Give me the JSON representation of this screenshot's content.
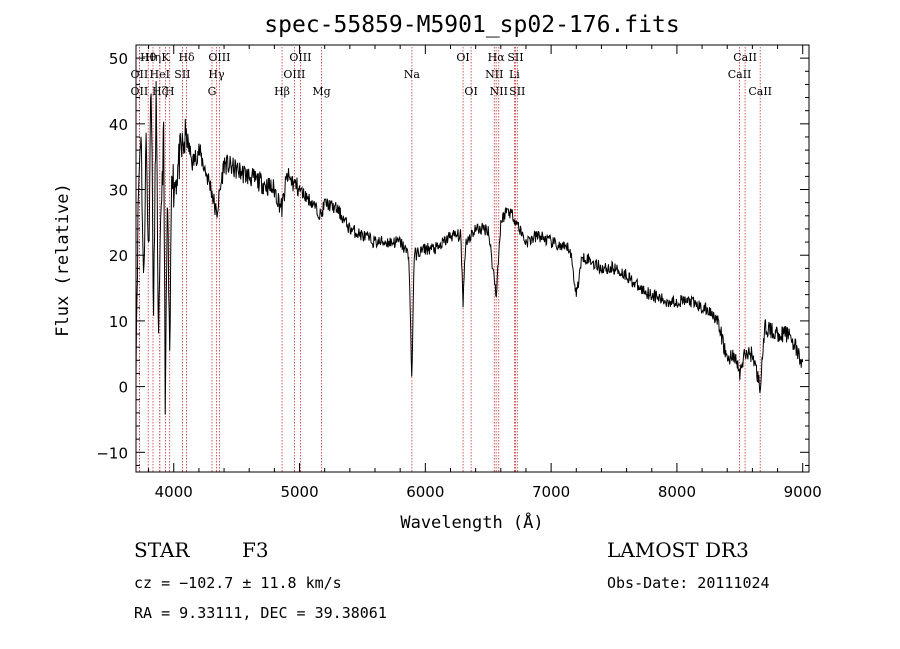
{
  "chart_data": {
    "type": "line",
    "title": "spec-55859-M5901_sp02-176.fits",
    "xlabel": "Wavelength (Å)",
    "ylabel": "Flux (relative)",
    "xlim": [
      3700,
      9050
    ],
    "ylim": [
      -13,
      52
    ],
    "xticks": [
      4000,
      5000,
      6000,
      7000,
      8000,
      9000
    ],
    "yticks": [
      -10,
      0,
      10,
      20,
      30,
      40,
      50
    ],
    "line_color": "#000000",
    "marker_color": "#cc3333",
    "spectrum_anchors": [
      [
        3700,
        5
      ],
      [
        3720,
        30
      ],
      [
        3740,
        40
      ],
      [
        3760,
        15
      ],
      [
        3780,
        38
      ],
      [
        3800,
        20
      ],
      [
        3820,
        48
      ],
      [
        3840,
        10
      ],
      [
        3860,
        45
      ],
      [
        3880,
        6
      ],
      [
        3900,
        28
      ],
      [
        3920,
        38
      ],
      [
        3933,
        -4
      ],
      [
        3950,
        30
      ],
      [
        3968,
        2
      ],
      [
        3985,
        36
      ],
      [
        4000,
        30
      ],
      [
        4050,
        35
      ],
      [
        4100,
        38
      ],
      [
        4150,
        34
      ],
      [
        4200,
        36
      ],
      [
        4250,
        33
      ],
      [
        4300,
        30
      ],
      [
        4340,
        26
      ],
      [
        4400,
        34
      ],
      [
        4500,
        33
      ],
      [
        4600,
        32
      ],
      [
        4700,
        31
      ],
      [
        4800,
        30
      ],
      [
        4861,
        27
      ],
      [
        4900,
        32
      ],
      [
        5000,
        30
      ],
      [
        5100,
        28
      ],
      [
        5172,
        26
      ],
      [
        5200,
        28
      ],
      [
        5300,
        27
      ],
      [
        5400,
        24
      ],
      [
        5500,
        23
      ],
      [
        5600,
        22
      ],
      [
        5700,
        22
      ],
      [
        5800,
        22
      ],
      [
        5870,
        20
      ],
      [
        5893,
        0.5
      ],
      [
        5910,
        20
      ],
      [
        6000,
        21
      ],
      [
        6100,
        21
      ],
      [
        6200,
        23
      ],
      [
        6280,
        23
      ],
      [
        6300,
        13
      ],
      [
        6320,
        22
      ],
      [
        6400,
        24
      ],
      [
        6500,
        24
      ],
      [
        6563,
        14
      ],
      [
        6600,
        25
      ],
      [
        6650,
        27
      ],
      [
        6700,
        26
      ],
      [
        6800,
        22
      ],
      [
        6900,
        23
      ],
      [
        7000,
        22
      ],
      [
        7100,
        21
      ],
      [
        7150,
        21
      ],
      [
        7200,
        14
      ],
      [
        7250,
        20
      ],
      [
        7400,
        18
      ],
      [
        7500,
        18
      ],
      [
        7600,
        17
      ],
      [
        7700,
        15
      ],
      [
        7800,
        14
      ],
      [
        7900,
        13
      ],
      [
        8000,
        13
      ],
      [
        8100,
        13
      ],
      [
        8200,
        12
      ],
      [
        8300,
        11
      ],
      [
        8350,
        8
      ],
      [
        8400,
        4
      ],
      [
        8450,
        5
      ],
      [
        8500,
        2
      ],
      [
        8542,
        5
      ],
      [
        8600,
        5
      ],
      [
        8662,
        0
      ],
      [
        8700,
        9
      ],
      [
        8800,
        8
      ],
      [
        8900,
        8
      ],
      [
        9000,
        3
      ]
    ],
    "emission_lines": [
      {
        "label": "OII",
        "wl": 3727,
        "row": 2
      },
      {
        "label": "Hθ",
        "wl": 3797,
        "row": 1
      },
      {
        "label": "OII",
        "wl": 3727,
        "row": 3
      },
      {
        "label": "Hη",
        "wl": 3835,
        "row": 1
      },
      {
        "label": "HeI",
        "wl": 3889,
        "row": 2
      },
      {
        "label": "Hζ",
        "wl": 3889,
        "row": 3
      },
      {
        "label": "K",
        "wl": 3934,
        "row": 1
      },
      {
        "label": "SII",
        "wl": 4069,
        "row": 2
      },
      {
        "label": "H",
        "wl": 3968,
        "row": 3
      },
      {
        "label": "Hδ",
        "wl": 4102,
        "row": 1
      },
      {
        "label": "OIII",
        "wl": 4363,
        "row": 1
      },
      {
        "label": "Hγ",
        "wl": 4340,
        "row": 2
      },
      {
        "label": "G",
        "wl": 4304,
        "row": 3
      },
      {
        "label": "Hβ",
        "wl": 4861,
        "row": 3
      },
      {
        "label": "OIII",
        "wl": 5007,
        "row": 1
      },
      {
        "label": "OIII",
        "wl": 4959,
        "row": 2
      },
      {
        "label": "Mg",
        "wl": 5175,
        "row": 3
      },
      {
        "label": "Na",
        "wl": 5893,
        "row": 2
      },
      {
        "label": "OI",
        "wl": 6300,
        "row": 1
      },
      {
        "label": "OI",
        "wl": 6364,
        "row": 3
      },
      {
        "label": "Hα",
        "wl": 6563,
        "row": 1
      },
      {
        "label": "NII",
        "wl": 6548,
        "row": 2
      },
      {
        "label": "NII",
        "wl": 6584,
        "row": 3
      },
      {
        "label": "SII",
        "wl": 6717,
        "row": 1
      },
      {
        "label": "Li",
        "wl": 6708,
        "row": 2
      },
      {
        "label": "SII",
        "wl": 6731,
        "row": 3
      },
      {
        "label": "CaII",
        "wl": 8542,
        "row": 1
      },
      {
        "label": "CaII",
        "wl": 8498,
        "row": 2
      },
      {
        "label": "CaII",
        "wl": 8662,
        "row": 3
      }
    ]
  },
  "info": {
    "object_class": "STAR",
    "subclass": "F3",
    "survey": "LAMOST DR3",
    "cz": "cz = −102.7 ± 11.8 km/s",
    "obs_date": "Obs-Date: 20111024",
    "coords": "RA =   9.33111, DEC =  39.38061"
  }
}
